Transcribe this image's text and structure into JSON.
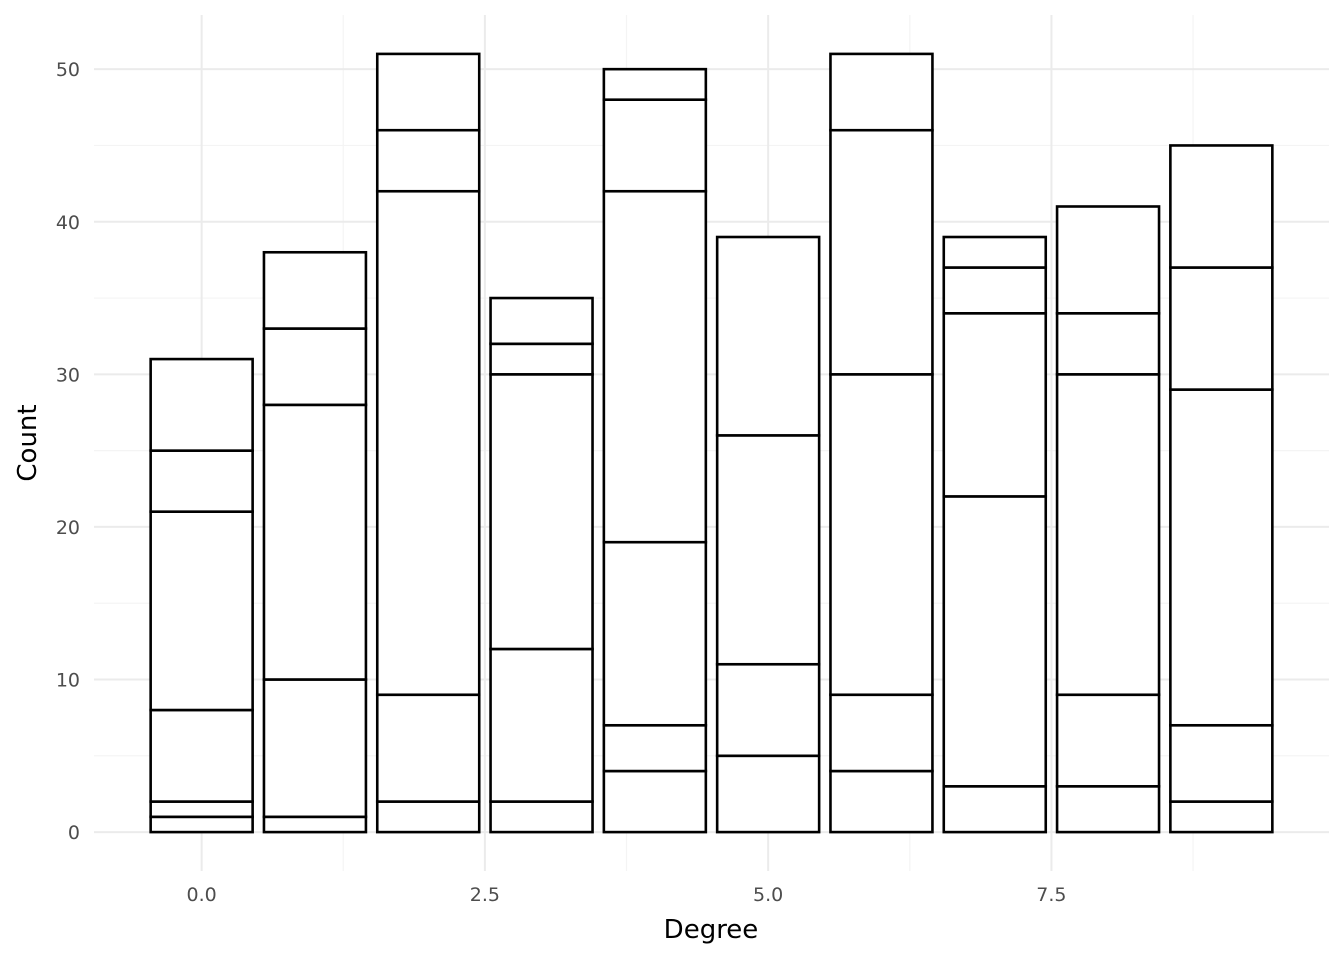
{
  "chart_data": {
    "type": "bar",
    "stacked": true,
    "xlabel": "Degree",
    "ylabel": "Count",
    "xlim": [
      -0.95,
      9.95
    ],
    "ylim": [
      -2.55,
      53.55
    ],
    "x_ticks": [
      0.0,
      2.5,
      5.0,
      7.5
    ],
    "x_tick_labels": [
      "0.0",
      "2.5",
      "5.0",
      "7.5"
    ],
    "y_ticks": [
      0,
      10,
      20,
      30,
      40,
      50
    ],
    "y_tick_labels": [
      "0",
      "10",
      "20",
      "30",
      "40",
      "50"
    ],
    "grid": true,
    "legend": "none",
    "fill_color": "#ffffff",
    "outline_color": "#000000",
    "bars": [
      {
        "x": 0,
        "total": 31,
        "boundaries": [
          0,
          1,
          2,
          8,
          21,
          25,
          31
        ]
      },
      {
        "x": 1,
        "total": 38,
        "boundaries": [
          0,
          1,
          10,
          28,
          33,
          38
        ]
      },
      {
        "x": 2,
        "total": 51,
        "boundaries": [
          0,
          2,
          9,
          42,
          46,
          51
        ]
      },
      {
        "x": 3,
        "total": 35,
        "boundaries": [
          0,
          2,
          12,
          30,
          32,
          35
        ]
      },
      {
        "x": 4,
        "total": 50,
        "boundaries": [
          0,
          4,
          7,
          19,
          42,
          48,
          50
        ]
      },
      {
        "x": 5,
        "total": 39,
        "boundaries": [
          0,
          5,
          11,
          26,
          39
        ]
      },
      {
        "x": 6,
        "total": 51,
        "boundaries": [
          0,
          4,
          9,
          30,
          46,
          51
        ]
      },
      {
        "x": 7,
        "total": 39,
        "boundaries": [
          0,
          3,
          22,
          34,
          37,
          39
        ]
      },
      {
        "x": 8,
        "total": 41,
        "boundaries": [
          0,
          3,
          9,
          30,
          34,
          41
        ]
      },
      {
        "x": 9,
        "total": 45,
        "boundaries": [
          0,
          2,
          7,
          29,
          37,
          45
        ]
      }
    ]
  }
}
